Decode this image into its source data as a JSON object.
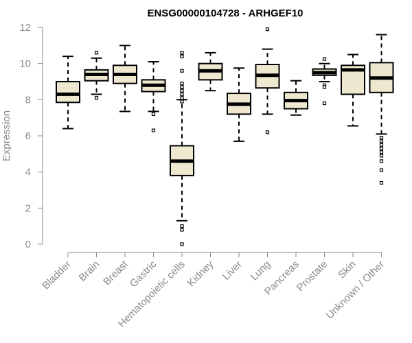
{
  "chart_data": {
    "type": "box",
    "title": "ENSG00000104728 - ARHGEF10",
    "xlabel": "",
    "ylabel": "Expression",
    "ylim": [
      0,
      12
    ],
    "yticks": [
      0,
      2,
      4,
      6,
      8,
      10,
      12
    ],
    "box_fill": "#efe8d0",
    "box_stroke": "#000000",
    "axis_color": "#8a8a8a",
    "grid": false,
    "legend": "none",
    "categories": [
      "Bladder",
      "Brain",
      "Breast",
      "Gastric",
      "Hematopoietic cells",
      "Kidney",
      "Liver",
      "Lung",
      "Pancreas",
      "Prostate",
      "Skin",
      "Unknown / Other"
    ],
    "boxes": [
      {
        "min": 6.4,
        "q1": 7.85,
        "median": 8.3,
        "q3": 9.0,
        "max": 10.4,
        "outliers": []
      },
      {
        "min": 8.3,
        "q1": 9.05,
        "median": 9.4,
        "q3": 9.65,
        "max": 10.3,
        "outliers": [
          10.6,
          8.1
        ]
      },
      {
        "min": 7.35,
        "q1": 8.9,
        "median": 9.4,
        "q3": 9.9,
        "max": 11.0,
        "outliers": []
      },
      {
        "min": 7.35,
        "q1": 8.45,
        "median": 8.8,
        "q3": 9.1,
        "max": 10.1,
        "outliers": [
          7.2,
          6.3
        ]
      },
      {
        "min": 1.3,
        "q1": 3.8,
        "median": 4.6,
        "q3": 5.45,
        "max": 8.0,
        "outliers": [
          10.6,
          10.4,
          9.6,
          8.9,
          8.7,
          8.5,
          8.3,
          8.1,
          7.9,
          1.0,
          0.8,
          0.0
        ]
      },
      {
        "min": 8.5,
        "q1": 9.1,
        "median": 9.6,
        "q3": 10.0,
        "max": 10.6,
        "outliers": []
      },
      {
        "min": 5.7,
        "q1": 7.2,
        "median": 7.75,
        "q3": 8.35,
        "max": 9.75,
        "outliers": []
      },
      {
        "min": 7.2,
        "q1": 8.65,
        "median": 9.35,
        "q3": 9.95,
        "max": 10.8,
        "outliers": [
          11.9,
          6.2
        ]
      },
      {
        "min": 7.15,
        "q1": 7.5,
        "median": 7.95,
        "q3": 8.4,
        "max": 9.05,
        "outliers": []
      },
      {
        "min": 9.0,
        "q1": 9.35,
        "median": 9.5,
        "q3": 9.7,
        "max": 10.0,
        "outliers": [
          10.25,
          8.8,
          8.7,
          7.8
        ]
      },
      {
        "min": 6.55,
        "q1": 8.3,
        "median": 9.65,
        "q3": 9.9,
        "max": 10.5,
        "outliers": []
      },
      {
        "min": 6.1,
        "q1": 8.4,
        "median": 9.2,
        "q3": 10.05,
        "max": 11.6,
        "outliers": [
          5.9,
          5.7,
          5.5,
          5.3,
          5.1,
          4.9,
          4.6,
          4.1,
          3.4
        ]
      }
    ]
  }
}
